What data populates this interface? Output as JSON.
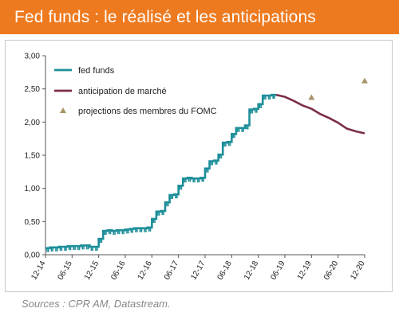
{
  "header": {
    "title": "Fed funds : le réalisé et les anticipations"
  },
  "footer": {
    "source": "Sources : CPR AM, Datastream."
  },
  "colors": {
    "banner": "#ee7a1f",
    "fed_funds": "#1e8f9a",
    "market": "#7b2d47",
    "fomc": "#a89468"
  },
  "chart_data": {
    "type": "line",
    "title": "",
    "xlabel": "",
    "ylabel": "",
    "ylim": [
      0,
      3
    ],
    "y_ticks": [
      "0,00",
      "0,50",
      "1,00",
      "1,50",
      "2,00",
      "2,50",
      "3,00"
    ],
    "x_ticks": [
      "12-14",
      "06-15",
      "12-15",
      "06-16",
      "12-16",
      "06-17",
      "12-17",
      "06-18",
      "12-18",
      "06-19",
      "12-19",
      "06-20",
      "12-20"
    ],
    "legend": [
      "fed funds",
      "anticipation de marché",
      "projections des membres du FOMC"
    ],
    "legend_position": "top-left",
    "series": [
      {
        "name": "fed funds",
        "color": "#1e8f9a",
        "points": [
          [
            "2014-12",
            0.1
          ],
          [
            "2015-01",
            0.11
          ],
          [
            "2015-02",
            0.11
          ],
          [
            "2015-03",
            0.12
          ],
          [
            "2015-04",
            0.12
          ],
          [
            "2015-05",
            0.13
          ],
          [
            "2015-06",
            0.13
          ],
          [
            "2015-07",
            0.13
          ],
          [
            "2015-08",
            0.14
          ],
          [
            "2015-09",
            0.14
          ],
          [
            "2015-10",
            0.12
          ],
          [
            "2015-11",
            0.12
          ],
          [
            "2015-12",
            0.24
          ],
          [
            "2016-01",
            0.36
          ],
          [
            "2016-02",
            0.37
          ],
          [
            "2016-03",
            0.36
          ],
          [
            "2016-04",
            0.37
          ],
          [
            "2016-05",
            0.37
          ],
          [
            "2016-06",
            0.38
          ],
          [
            "2016-07",
            0.39
          ],
          [
            "2016-08",
            0.4
          ],
          [
            "2016-09",
            0.4
          ],
          [
            "2016-10",
            0.4
          ],
          [
            "2016-11",
            0.41
          ],
          [
            "2016-12",
            0.54
          ],
          [
            "2017-01",
            0.65
          ],
          [
            "2017-02",
            0.66
          ],
          [
            "2017-03",
            0.79
          ],
          [
            "2017-04",
            0.9
          ],
          [
            "2017-05",
            0.91
          ],
          [
            "2017-06",
            1.04
          ],
          [
            "2017-07",
            1.15
          ],
          [
            "2017-08",
            1.16
          ],
          [
            "2017-09",
            1.15
          ],
          [
            "2017-10",
            1.15
          ],
          [
            "2017-11",
            1.16
          ],
          [
            "2017-12",
            1.3
          ],
          [
            "2018-01",
            1.41
          ],
          [
            "2018-02",
            1.42
          ],
          [
            "2018-03",
            1.51
          ],
          [
            "2018-04",
            1.69
          ],
          [
            "2018-05",
            1.7
          ],
          [
            "2018-06",
            1.82
          ],
          [
            "2018-07",
            1.91
          ],
          [
            "2018-08",
            1.91
          ],
          [
            "2018-09",
            1.95
          ],
          [
            "2018-10",
            2.19
          ],
          [
            "2018-11",
            2.2
          ],
          [
            "2018-12",
            2.27
          ],
          [
            "2019-01",
            2.4
          ],
          [
            "2019-02",
            2.4
          ],
          [
            "2019-03",
            2.41
          ],
          [
            "2019-04",
            2.42
          ]
        ]
      },
      {
        "name": "anticipation de marché",
        "color": "#7b2d47",
        "points": [
          [
            "2019-04",
            2.41
          ],
          [
            "2019-06",
            2.38
          ],
          [
            "2019-08",
            2.32
          ],
          [
            "2019-10",
            2.25
          ],
          [
            "2019-12",
            2.2
          ],
          [
            "2020-02",
            2.12
          ],
          [
            "2020-04",
            2.06
          ],
          [
            "2020-06",
            1.99
          ],
          [
            "2020-08",
            1.9
          ],
          [
            "2020-10",
            1.86
          ],
          [
            "2020-12",
            1.83
          ]
        ]
      },
      {
        "name": "projections des membres du FOMC",
        "color": "#a89468",
        "points": [
          [
            "2019-12",
            2.37
          ],
          [
            "2020-12",
            2.62
          ]
        ]
      }
    ]
  }
}
